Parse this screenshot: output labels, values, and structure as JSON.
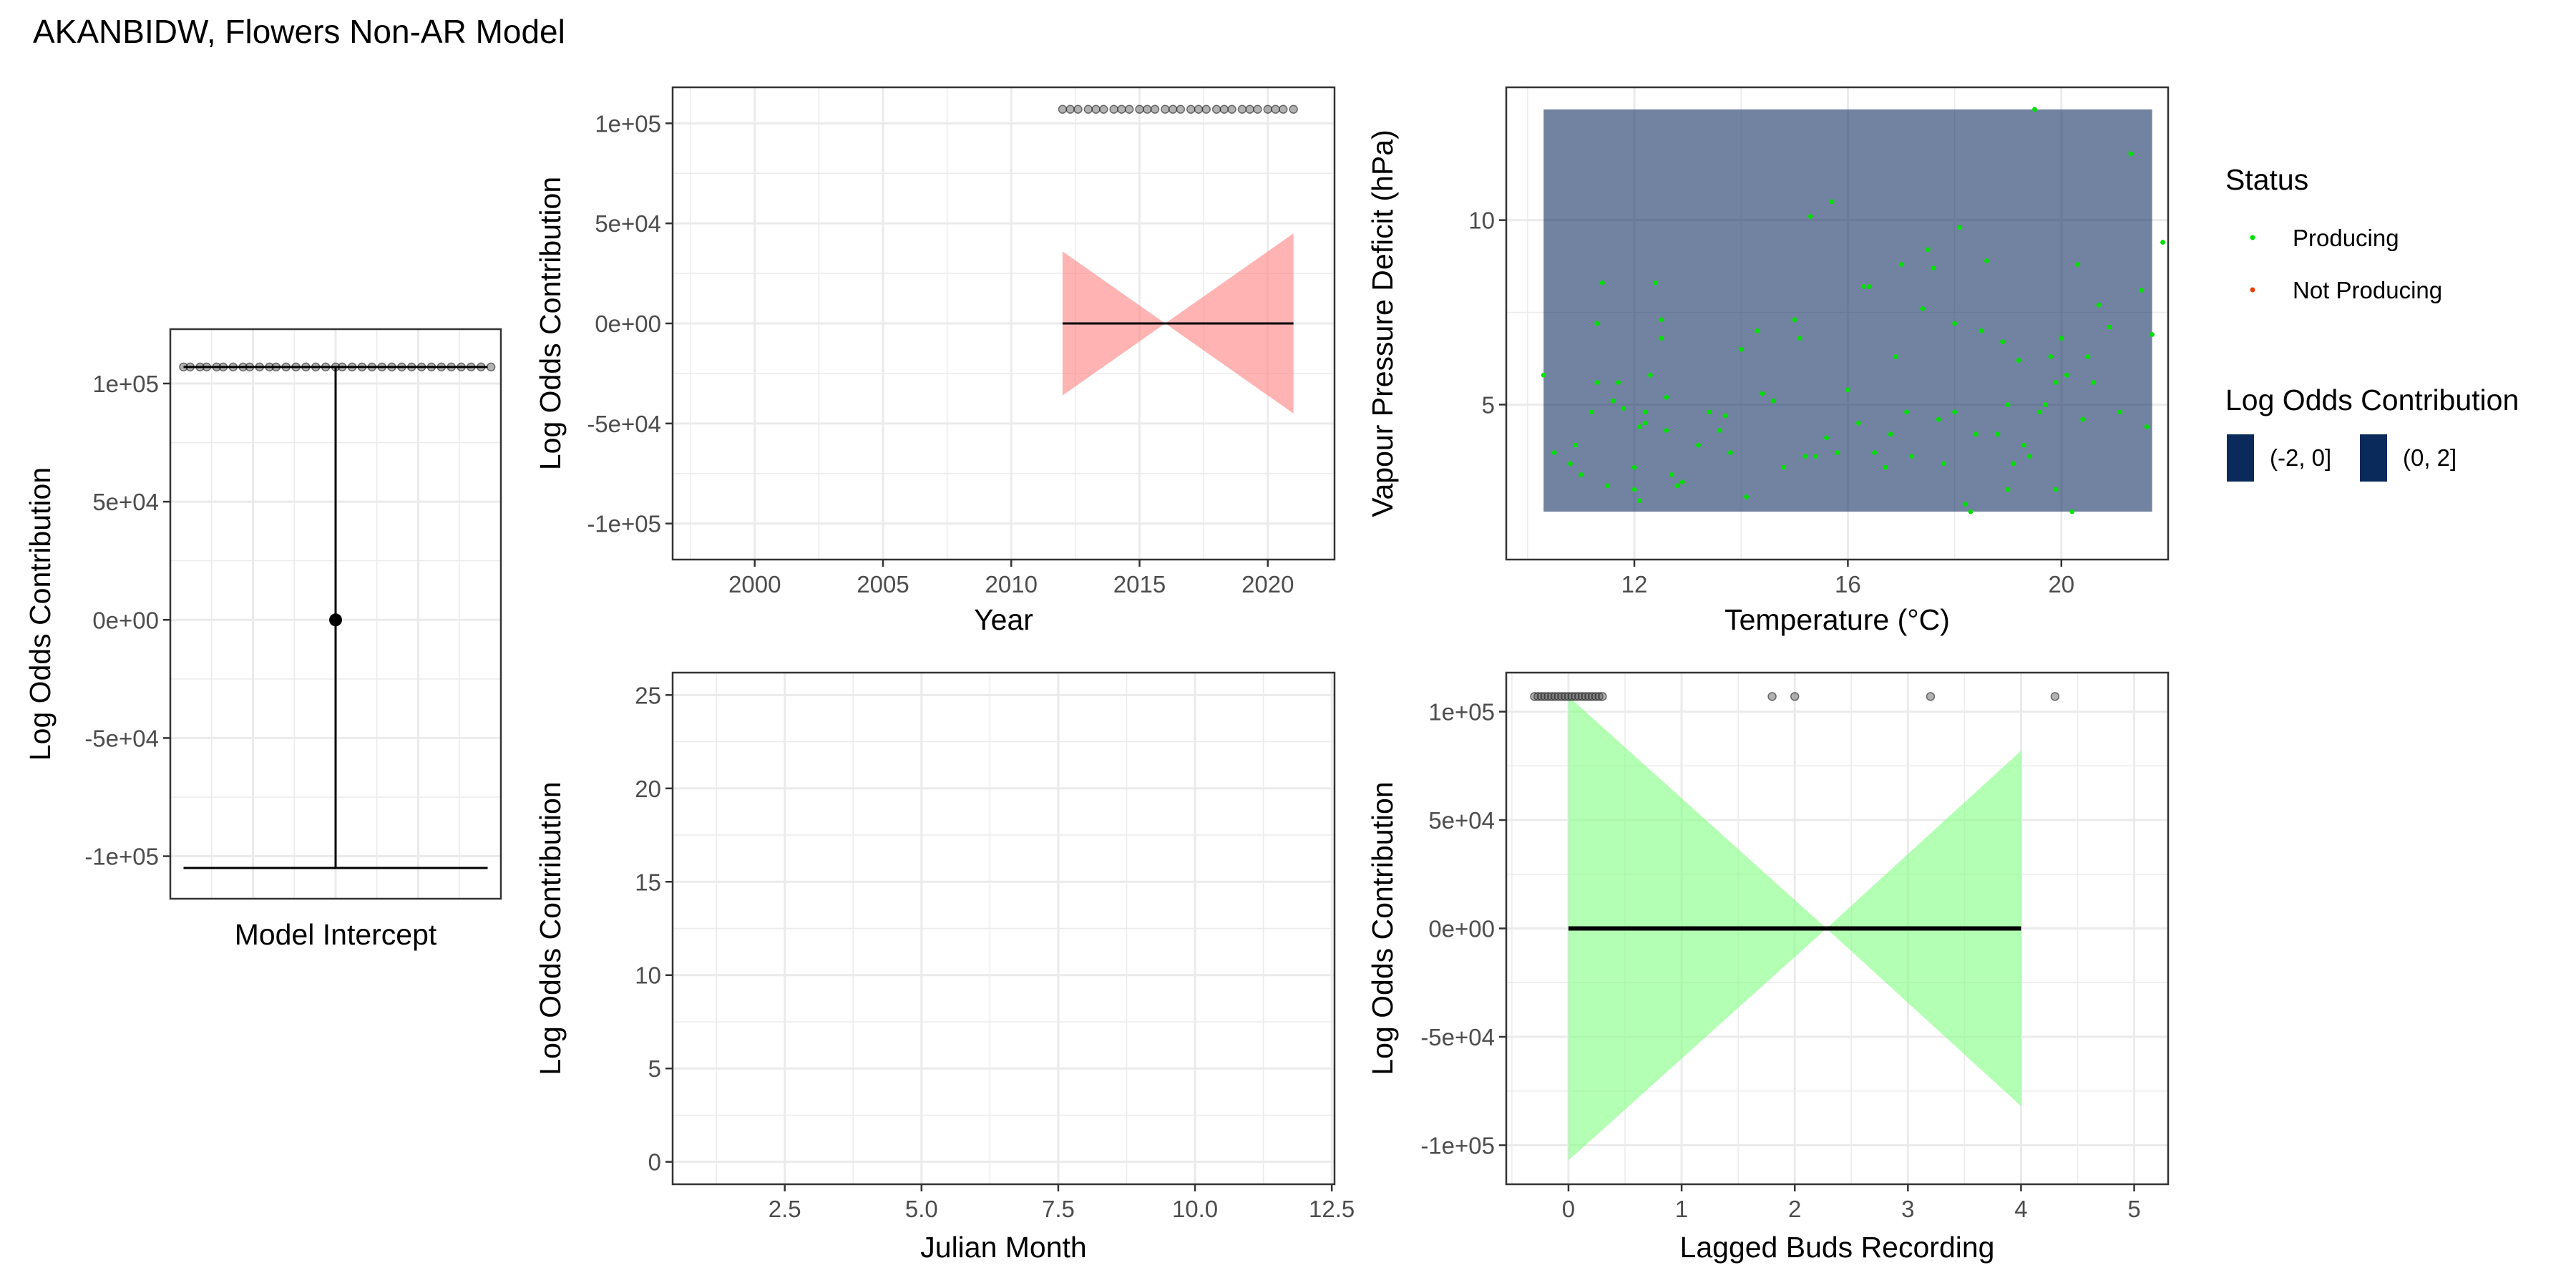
{
  "title": "AKANBIDW, Flowers Non-AR Model",
  "colors": {
    "producing": "#00e000",
    "not_producing": "#e8400c",
    "tile": "#0a2a5c",
    "ribbon_red": "#ff8080",
    "ribbon_green": "#80ff80",
    "grid": "#ebebeb"
  },
  "legend": {
    "status_title": "Status",
    "status_items": [
      "Producing",
      "Not Producing"
    ],
    "lo_title": "Log Odds Contribution",
    "lo_items": [
      "(-2, 0]",
      "(0, 2]"
    ]
  },
  "chart_data": [
    {
      "id": "intercept",
      "type": "errorbar",
      "xlabel": "Model Intercept",
      "ylabel": "Log Odds Contribution",
      "ylim": [
        -118000,
        123000
      ],
      "y_ticks": [
        -100000,
        -50000,
        0,
        50000,
        100000
      ],
      "y_tick_labels": [
        "-1e+05",
        "-5e+04",
        "0e+00",
        "5e+04",
        "1e+05"
      ],
      "estimate": 0,
      "lower": -105000,
      "upper": 107000,
      "rug_y": 107000,
      "rug_x": [
        0.04,
        0.06,
        0.09,
        0.11,
        0.14,
        0.16,
        0.19,
        0.22,
        0.24,
        0.27,
        0.3,
        0.32,
        0.35,
        0.38,
        0.41,
        0.44,
        0.47,
        0.5,
        0.52,
        0.55,
        0.58,
        0.61,
        0.64,
        0.67,
        0.7,
        0.73,
        0.76,
        0.79,
        0.82,
        0.85,
        0.88,
        0.91,
        0.94,
        0.97
      ]
    },
    {
      "id": "year",
      "type": "line",
      "xlabel": "Year",
      "ylabel": "Log Odds Contribution",
      "xlim": [
        1996.8,
        2022.6
      ],
      "ylim": [
        -118000,
        118000
      ],
      "x_ticks": [
        2000,
        2005,
        2010,
        2015,
        2020
      ],
      "x_tick_labels": [
        "2000",
        "2005",
        "2010",
        "2015",
        "2020"
      ],
      "y_ticks": [
        -100000,
        -50000,
        0,
        50000,
        100000
      ],
      "y_tick_labels": [
        "-1e+05",
        "-5e+04",
        "0e+00",
        "5e+04",
        "1e+05"
      ],
      "fit": {
        "x": [
          2012,
          2021
        ],
        "y": [
          0,
          0
        ]
      },
      "ribbon": {
        "x": [
          2012,
          2016,
          2021
        ],
        "lower": [
          -36000,
          0,
          -45000
        ],
        "upper": [
          36000,
          0,
          45000
        ]
      },
      "rug_y": 107000,
      "rug_x": [
        2012.0,
        2012.3,
        2012.6,
        2013.0,
        2013.3,
        2013.6,
        2014.0,
        2014.3,
        2014.6,
        2015.0,
        2015.3,
        2015.6,
        2016.0,
        2016.3,
        2016.6,
        2017.0,
        2017.3,
        2017.6,
        2018.0,
        2018.3,
        2018.6,
        2019.0,
        2019.3,
        2019.6,
        2020.0,
        2020.3,
        2020.6,
        2021.0
      ]
    },
    {
      "id": "vpd_temp",
      "type": "heatmap",
      "xlabel": "Temperature (°C)",
      "ylabel": "Vapour Pressure Deficit (hPa)",
      "xlim": [
        9.6,
        22.0
      ],
      "ylim": [
        0.8,
        13.6
      ],
      "x_ticks": [
        12,
        16,
        20
      ],
      "x_tick_labels": [
        "12",
        "16",
        "20"
      ],
      "y_ticks": [
        5,
        10
      ],
      "y_tick_labels": [
        "5",
        "10"
      ],
      "tile": {
        "x": [
          10.3,
          21.7
        ],
        "y": [
          2.1,
          13.0
        ],
        "bin": "(0, 2]"
      },
      "points": [
        [
          10.3,
          5.8
        ],
        [
          10.5,
          3.7
        ],
        [
          10.8,
          3.4
        ],
        [
          10.9,
          3.9
        ],
        [
          11.0,
          3.1
        ],
        [
          11.2,
          4.8
        ],
        [
          11.3,
          7.2
        ],
        [
          11.3,
          5.6
        ],
        [
          11.4,
          8.3
        ],
        [
          11.5,
          2.8
        ],
        [
          11.6,
          5.1
        ],
        [
          11.7,
          5.6
        ],
        [
          11.8,
          4.9
        ],
        [
          12.0,
          3.3
        ],
        [
          12.0,
          2.7
        ],
        [
          12.1,
          4.4
        ],
        [
          12.1,
          2.4
        ],
        [
          12.2,
          4.8
        ],
        [
          12.2,
          4.5
        ],
        [
          12.3,
          5.8
        ],
        [
          12.4,
          8.3
        ],
        [
          12.5,
          7.3
        ],
        [
          12.5,
          6.8
        ],
        [
          12.6,
          4.3
        ],
        [
          12.6,
          5.2
        ],
        [
          12.7,
          3.1
        ],
        [
          12.8,
          2.8
        ],
        [
          12.9,
          2.9
        ],
        [
          13.2,
          3.9
        ],
        [
          13.4,
          4.8
        ],
        [
          13.6,
          4.3
        ],
        [
          13.7,
          4.7
        ],
        [
          13.8,
          3.7
        ],
        [
          14.0,
          6.5
        ],
        [
          14.1,
          2.5
        ],
        [
          14.3,
          7.0
        ],
        [
          14.4,
          5.3
        ],
        [
          14.6,
          5.1
        ],
        [
          14.8,
          3.3
        ],
        [
          15.0,
          7.3
        ],
        [
          15.1,
          6.8
        ],
        [
          15.2,
          3.6
        ],
        [
          15.3,
          10.1
        ],
        [
          15.4,
          3.6
        ],
        [
          15.6,
          4.1
        ],
        [
          15.7,
          10.5
        ],
        [
          15.8,
          3.7
        ],
        [
          16.0,
          5.4
        ],
        [
          16.2,
          4.5
        ],
        [
          16.3,
          8.2
        ],
        [
          16.4,
          8.2
        ],
        [
          16.5,
          3.7
        ],
        [
          16.7,
          3.3
        ],
        [
          16.8,
          4.2
        ],
        [
          16.9,
          6.3
        ],
        [
          17.0,
          8.8
        ],
        [
          17.1,
          4.8
        ],
        [
          17.2,
          3.6
        ],
        [
          17.4,
          7.6
        ],
        [
          17.5,
          9.2
        ],
        [
          17.6,
          8.7
        ],
        [
          17.7,
          4.6
        ],
        [
          17.8,
          3.4
        ],
        [
          18.0,
          4.8
        ],
        [
          18.0,
          7.2
        ],
        [
          18.1,
          9.8
        ],
        [
          18.2,
          2.3
        ],
        [
          18.3,
          2.1
        ],
        [
          18.4,
          4.2
        ],
        [
          18.5,
          7.0
        ],
        [
          18.6,
          8.9
        ],
        [
          18.8,
          4.2
        ],
        [
          18.9,
          6.7
        ],
        [
          19.0,
          2.7
        ],
        [
          19.0,
          5.0
        ],
        [
          19.1,
          3.4
        ],
        [
          19.2,
          6.2
        ],
        [
          19.3,
          3.9
        ],
        [
          19.4,
          3.6
        ],
        [
          19.5,
          13.0
        ],
        [
          19.6,
          4.8
        ],
        [
          19.7,
          5.0
        ],
        [
          19.8,
          6.3
        ],
        [
          19.9,
          2.7
        ],
        [
          19.9,
          5.6
        ],
        [
          20.0,
          6.8
        ],
        [
          20.1,
          5.8
        ],
        [
          20.2,
          2.1
        ],
        [
          20.3,
          8.8
        ],
        [
          20.4,
          4.6
        ],
        [
          20.5,
          6.3
        ],
        [
          20.6,
          5.6
        ],
        [
          20.7,
          7.7
        ],
        [
          20.9,
          7.1
        ],
        [
          21.1,
          4.8
        ],
        [
          21.3,
          11.8
        ],
        [
          21.5,
          8.1
        ],
        [
          21.6,
          4.4
        ],
        [
          21.7,
          6.9
        ],
        [
          21.9,
          9.4
        ]
      ]
    },
    {
      "id": "julian_month",
      "type": "line",
      "xlabel": "Julian Month",
      "ylabel": "Log Odds Contribution",
      "xlim": [
        0.45,
        12.55
      ],
      "ylim": [
        -1.2,
        26.2
      ],
      "x_ticks": [
        2.5,
        5.0,
        7.5,
        10.0,
        12.5
      ],
      "x_tick_labels": [
        "2.5",
        "5.0",
        "7.5",
        "10.0",
        "12.5"
      ],
      "y_ticks": [
        0,
        5,
        10,
        15,
        20,
        25
      ],
      "y_tick_labels": [
        "0",
        "5",
        "10",
        "15",
        "20",
        "25"
      ]
    },
    {
      "id": "lagged_buds",
      "type": "line",
      "xlabel": "Lagged Buds Recording",
      "ylabel": "Log Odds Contribution",
      "xlim": [
        -0.55,
        5.3
      ],
      "ylim": [
        -118000,
        118000
      ],
      "x_ticks": [
        0,
        1,
        2,
        3,
        4,
        5
      ],
      "x_tick_labels": [
        "0",
        "1",
        "2",
        "3",
        "4",
        "5"
      ],
      "y_ticks": [
        -100000,
        -50000,
        0,
        50000,
        100000
      ],
      "y_tick_labels": [
        "-1e+05",
        "-5e+04",
        "0e+00",
        "5e+04",
        "1e+05"
      ],
      "fit": {
        "x": [
          0,
          4
        ],
        "y": [
          0,
          0
        ]
      },
      "ribbon": {
        "x": [
          0,
          2.28,
          4
        ],
        "lower": [
          -107000,
          0,
          -82000
        ],
        "upper": [
          107000,
          0,
          82000
        ]
      },
      "rug_y": 107000,
      "rug_x": [
        -0.3,
        -0.27,
        -0.24,
        -0.21,
        -0.18,
        -0.15,
        -0.12,
        -0.09,
        -0.06,
        -0.03,
        0.0,
        0.03,
        0.06,
        0.09,
        0.12,
        0.15,
        0.18,
        0.21,
        0.24,
        0.27,
        0.3,
        1.8,
        2.0,
        3.2,
        4.3
      ]
    }
  ]
}
